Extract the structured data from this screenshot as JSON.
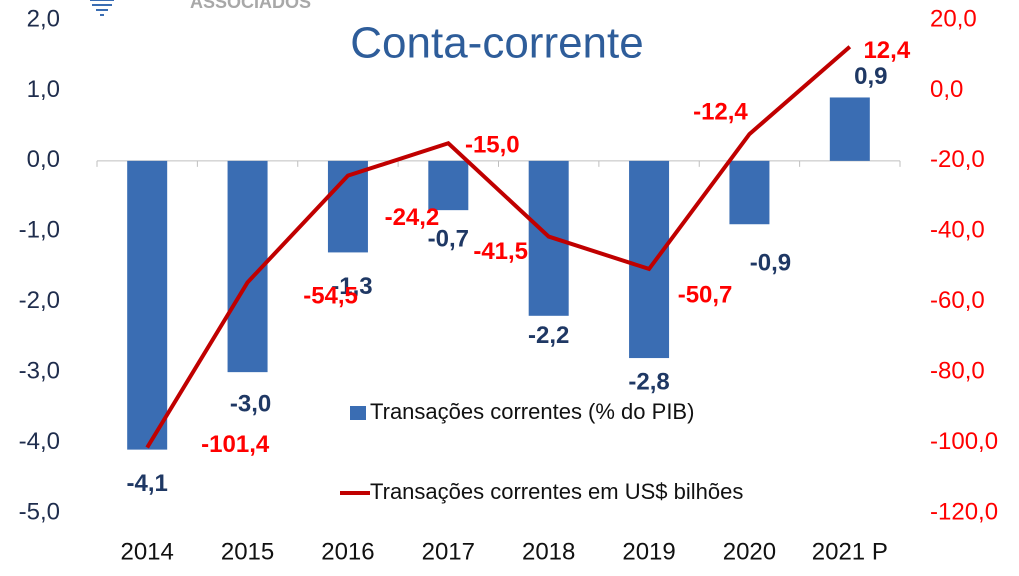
{
  "chart_data": {
    "type": "bar-line",
    "title": "Conta-corrente",
    "logo_text": "ASSOCIADOS",
    "categories": [
      "2014",
      "2015",
      "2016",
      "2017",
      "2018",
      "2019",
      "2020",
      "2021 P"
    ],
    "series": [
      {
        "name": "Transações correntes (% do PIB)",
        "type": "bar",
        "color": "#3a6db3",
        "label_color": "#1f3864",
        "values": [
          -4.1,
          -3.0,
          -1.3,
          -0.7,
          -2.2,
          -2.8,
          -0.9,
          0.9
        ],
        "value_labels": [
          "-4,1",
          "-3,0",
          "-1,3",
          "-0,7",
          "-2,2",
          "-2,8",
          "-0,9",
          "0,9"
        ]
      },
      {
        "name": "Transações correntes em US$ bilhões",
        "type": "line",
        "axis": "y2",
        "color": "#c00000",
        "label_color": "#ff0000",
        "values": [
          -101.4,
          -54.5,
          -24.2,
          -15.0,
          -41.5,
          -50.7,
          -12.4,
          12.4
        ],
        "value_labels": [
          "-101,4",
          "-54,5",
          "-24,2",
          "-15,0",
          "-41,5",
          "-50,7",
          "-12,4",
          "12,4"
        ]
      }
    ],
    "ylim": [
      -5,
      2
    ],
    "yticks": [
      {
        "value": -5,
        "label": "-5,0"
      },
      {
        "value": -4,
        "label": "-4,0"
      },
      {
        "value": -3,
        "label": "-3,0"
      },
      {
        "value": -2,
        "label": "-2,0"
      },
      {
        "value": -1,
        "label": "-1,0"
      },
      {
        "value": 0,
        "label": "0,0"
      },
      {
        "value": 1,
        "label": "1,0"
      },
      {
        "value": 2,
        "label": "2,0"
      }
    ],
    "y2lim": [
      -120,
      20
    ],
    "y2ticks": [
      {
        "value": -120,
        "label": "-120,0"
      },
      {
        "value": -100,
        "label": "-100,0"
      },
      {
        "value": -80,
        "label": "-80,0"
      },
      {
        "value": -60,
        "label": "-60,0"
      },
      {
        "value": -40,
        "label": "-40,0"
      },
      {
        "value": -20,
        "label": "-20,0"
      },
      {
        "value": 0,
        "label": "0,0"
      },
      {
        "value": 20,
        "label": "20,0"
      }
    ]
  }
}
